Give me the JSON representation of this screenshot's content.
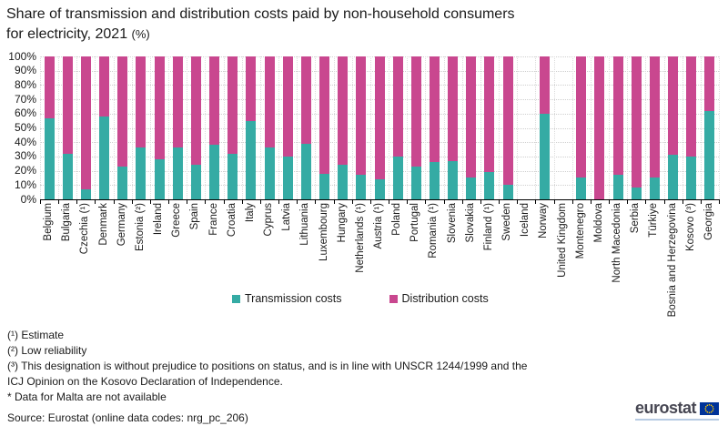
{
  "title_main": "Share of transmission and distribution costs paid by non-household consumers for electricity, 2021",
  "title_unit": "(%)",
  "chart_data": {
    "type": "bar",
    "stacked": true,
    "orientation": "vertical",
    "unit": "%",
    "ylim": [
      0,
      100
    ],
    "ytick_step": 10,
    "ytick_labels": [
      "0%",
      "10%",
      "20%",
      "30%",
      "40%",
      "50%",
      "60%",
      "70%",
      "80%",
      "90%",
      "100%"
    ],
    "grid": "horizontal-dotted and vertical-dotted",
    "legend_position": "bottom-center",
    "categories": [
      "Belgium",
      "Bulgaria",
      "Czechia (¹)",
      "Denmark",
      "Germany",
      "Estonia (²)",
      "Ireland",
      "Greece",
      "Spain",
      "France",
      "Croatia",
      "Italy",
      "Cyprus",
      "Latvia",
      "Lithuania",
      "Luxembourg",
      "Hungary",
      "Netherlands (¹)",
      "Austria (¹)",
      "Poland",
      "Portugal",
      "Romania (¹)",
      "Slovenia",
      "Slovakia",
      "Finland (¹)",
      "Sweden",
      "Iceland",
      "Norway",
      "United Kingdom",
      "Montenegro",
      "Moldova",
      "North Macedonia",
      "Serbia",
      "Türkiye",
      "Bosnia and Herzegovina",
      "Kosovo (³)",
      "Georgia"
    ],
    "series": [
      {
        "name": "Transmission costs",
        "color": "#35ABA4",
        "values": [
          57,
          32,
          7,
          58,
          23,
          36,
          28,
          36,
          24,
          38,
          32,
          55,
          36,
          30,
          39,
          18,
          24,
          17,
          14,
          30,
          23,
          26,
          27,
          15,
          19,
          10,
          null,
          60,
          null,
          15,
          0,
          17,
          8,
          15,
          31,
          30,
          62
        ]
      },
      {
        "name": "Distribution costs",
        "color": "#C9478F",
        "values": [
          43,
          68,
          93,
          42,
          77,
          64,
          72,
          64,
          76,
          62,
          68,
          45,
          64,
          70,
          61,
          82,
          76,
          83,
          86,
          70,
          77,
          74,
          73,
          85,
          81,
          90,
          null,
          40,
          null,
          85,
          100,
          83,
          92,
          85,
          69,
          70,
          38
        ]
      }
    ],
    "no_data_categories": [
      "Iceland",
      "United Kingdom"
    ]
  },
  "legend": {
    "items": [
      {
        "label": "Transmission costs",
        "color": "#35ABA4"
      },
      {
        "label": "Distribution costs",
        "color": "#C9478F"
      }
    ]
  },
  "footnotes": [
    "(¹) Estimate",
    "(²) Low reliability",
    "(³) This designation is without prejudice to positions on status, and is in line with UNSCR 1244/1999 and the ICJ Opinion on the Kosovo Declaration of Independence.",
    "* Data for Malta are not available"
  ],
  "source": "Source: Eurostat (online data codes: nrg_pc_206)",
  "logo": {
    "text": "eurostat"
  }
}
